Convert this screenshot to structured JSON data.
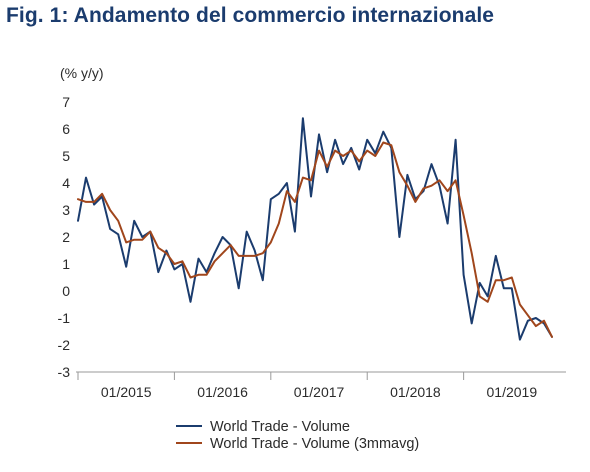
{
  "title": "Fig. 1: Andamento del commercio internazionale",
  "chart_data": {
    "type": "line",
    "ylabel": "(% y/y)",
    "ylim": [
      -3,
      7
    ],
    "yticks": [
      -3,
      -2,
      -1,
      0,
      1,
      2,
      3,
      4,
      5,
      6,
      7
    ],
    "x_start": "2014-07",
    "x_end": "2019-06",
    "xtick_labels": [
      "01/2015",
      "01/2016",
      "01/2017",
      "01/2018",
      "01/2019"
    ],
    "xtick_dates": [
      "2015-01",
      "2016-01",
      "2017-01",
      "2018-01",
      "2019-01"
    ],
    "grid": false,
    "legend_position": "bottom",
    "series": [
      {
        "name": "World Trade - Volume",
        "color": "#1b3c6e",
        "values": [
          2.6,
          4.2,
          3.2,
          3.5,
          2.3,
          2.1,
          0.9,
          2.6,
          2.0,
          2.2,
          0.7,
          1.5,
          0.8,
          1.0,
          -0.4,
          1.2,
          0.7,
          1.4,
          2.0,
          1.7,
          0.1,
          2.2,
          1.5,
          0.4,
          3.4,
          3.6,
          4.0,
          2.2,
          6.4,
          3.5,
          5.8,
          4.4,
          5.6,
          4.7,
          5.3,
          4.5,
          5.6,
          5.1,
          5.9,
          5.3,
          2.0,
          4.3,
          3.4,
          3.7,
          4.7,
          3.9,
          2.5,
          5.6,
          0.6,
          -1.2,
          0.3,
          -0.2,
          1.3,
          0.1,
          0.1,
          -1.8,
          -1.1,
          -1.0,
          -1.2,
          -1.7
        ]
      },
      {
        "name": "World Trade - Volume (3mmavg)",
        "color": "#a0461c",
        "values": [
          3.4,
          3.3,
          3.3,
          3.6,
          3.0,
          2.6,
          1.8,
          1.9,
          1.9,
          2.2,
          1.6,
          1.4,
          1.0,
          1.1,
          0.5,
          0.6,
          0.6,
          1.1,
          1.4,
          1.7,
          1.3,
          1.3,
          1.3,
          1.4,
          1.8,
          2.5,
          3.7,
          3.3,
          4.2,
          4.1,
          5.2,
          4.6,
          5.2,
          5.0,
          5.2,
          4.8,
          5.2,
          5.0,
          5.5,
          5.4,
          4.4,
          3.9,
          3.3,
          3.8,
          3.9,
          4.1,
          3.7,
          4.1,
          2.8,
          1.4,
          -0.2,
          -0.4,
          0.4,
          0.4,
          0.5,
          -0.5,
          -0.9,
          -1.3,
          -1.1,
          -1.7
        ]
      }
    ]
  }
}
